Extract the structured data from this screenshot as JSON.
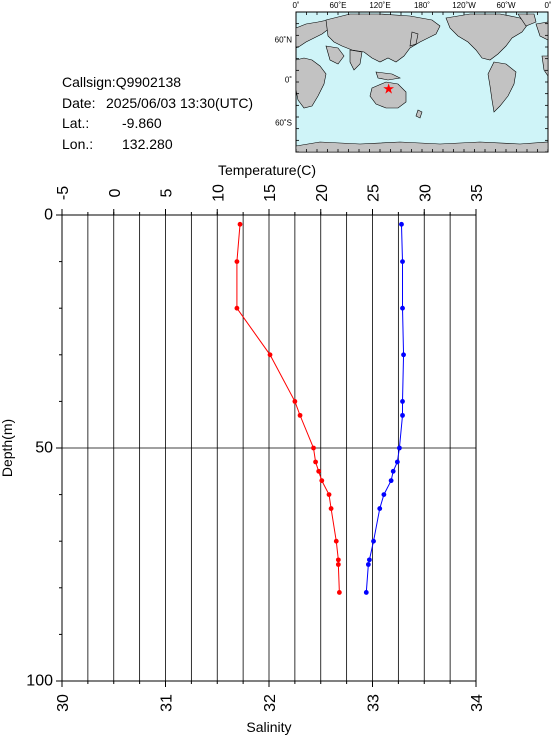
{
  "info": {
    "callsign": "Callsign:Q9902138",
    "date_label": "Date:",
    "date_value": "2025/06/03 13:30(UTC)",
    "lat_label": "Lat.:",
    "lat_value": "-9.860",
    "lon_label": "Lon.:",
    "lon_value": "132.280"
  },
  "map": {
    "top_labels": [
      "0˚",
      "60˚E",
      "120˚E",
      "180˚",
      "120˚W",
      "60˚W",
      "0˚"
    ],
    "left_labels": [
      "60˚N",
      "0˚",
      "60˚S"
    ],
    "ocean_color": "#cff4f8",
    "land_color": "#c2c2c2",
    "marker_color": "#ff0000",
    "marker_lat": -9.86,
    "marker_lon": 132.28
  },
  "chart_data": {
    "type": "line",
    "xlabel_top": "Temperature(C)",
    "xlabel_bottom": "Salinity",
    "ylabel": "Depth(m)",
    "temperature_ticks": [
      "-5",
      "0",
      "5",
      "10",
      "15",
      "20",
      "25",
      "30",
      "35"
    ],
    "salinity_ticks": [
      "30",
      "31",
      "32",
      "33",
      "34"
    ],
    "depth_ticks": [
      "0",
      "50",
      "100"
    ],
    "temperature_range": [
      -5,
      35
    ],
    "salinity_range": [
      30,
      34
    ],
    "depth_range": [
      0,
      100
    ],
    "grid": true,
    "series": [
      {
        "quantity": "temperature",
        "color": "#ff0000",
        "points": [
          {
            "depth": 2,
            "value": 12.2
          },
          {
            "depth": 10,
            "value": 11.9
          },
          {
            "depth": 20,
            "value": 11.9
          },
          {
            "depth": 30,
            "value": 15.1
          },
          {
            "depth": 40,
            "value": 17.5
          },
          {
            "depth": 43,
            "value": 18.0
          },
          {
            "depth": 50,
            "value": 19.3
          },
          {
            "depth": 53,
            "value": 19.5
          },
          {
            "depth": 55,
            "value": 19.8
          },
          {
            "depth": 57,
            "value": 20.1
          },
          {
            "depth": 60,
            "value": 20.8
          },
          {
            "depth": 63,
            "value": 21.0
          },
          {
            "depth": 70,
            "value": 21.5
          },
          {
            "depth": 74,
            "value": 21.7
          },
          {
            "depth": 75,
            "value": 21.7
          },
          {
            "depth": 81,
            "value": 21.8
          }
        ]
      },
      {
        "quantity": "salinity",
        "color": "#0000ff",
        "points": [
          {
            "depth": 2,
            "value": 33.28
          },
          {
            "depth": 10,
            "value": 33.29
          },
          {
            "depth": 20,
            "value": 33.29
          },
          {
            "depth": 30,
            "value": 33.3
          },
          {
            "depth": 40,
            "value": 33.29
          },
          {
            "depth": 43,
            "value": 33.29
          },
          {
            "depth": 50,
            "value": 33.26
          },
          {
            "depth": 53,
            "value": 33.24
          },
          {
            "depth": 55,
            "value": 33.2
          },
          {
            "depth": 57,
            "value": 33.18
          },
          {
            "depth": 60,
            "value": 33.11
          },
          {
            "depth": 63,
            "value": 33.07
          },
          {
            "depth": 70,
            "value": 33.01
          },
          {
            "depth": 74,
            "value": 32.97
          },
          {
            "depth": 75,
            "value": 32.96
          },
          {
            "depth": 81,
            "value": 32.94
          }
        ]
      }
    ]
  }
}
